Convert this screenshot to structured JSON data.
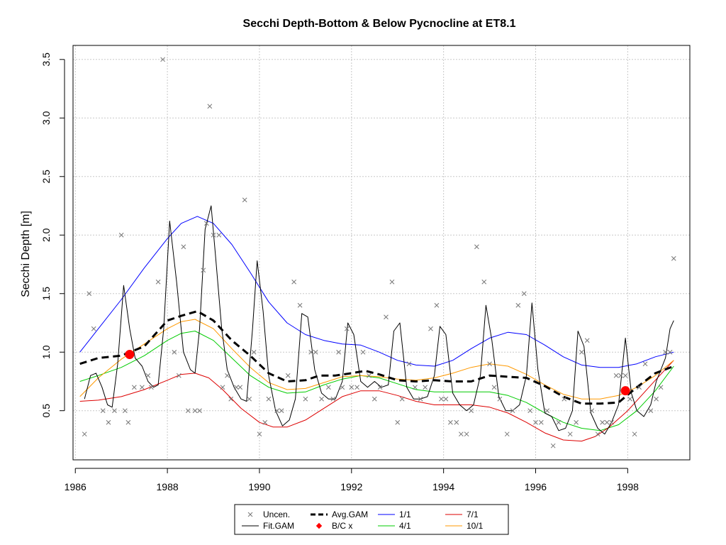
{
  "chart_data": {
    "type": "line",
    "title": "Secchi Depth-Bottom & Below Pycnocline at ET8.1",
    "xlabel": "",
    "ylabel": "Secchi Depth [m]",
    "xlim": [
      1985.95,
      1999.35
    ],
    "ylim": [
      0.08,
      3.62
    ],
    "x_ticks": [
      1986,
      1988,
      1990,
      1992,
      1994,
      1996,
      1998
    ],
    "y_ticks": [
      0.5,
      1.0,
      1.5,
      2.0,
      2.5,
      3.0,
      3.5
    ],
    "x_tick_labels": [
      "1986",
      "1988",
      "1990",
      "1992",
      "1994",
      "1996",
      "1998"
    ],
    "y_tick_labels": [
      "0.5",
      "1.0",
      "1.5",
      "2.0",
      "2.5",
      "3.0",
      "3.5"
    ],
    "grid": true,
    "legend_position": "bottom-center",
    "uncensored_points": {
      "x": [
        1986.2,
        1986.3,
        1986.4,
        1986.6,
        1986.72,
        1986.85,
        1987.0,
        1987.08,
        1987.15,
        1987.28,
        1987.45,
        1987.58,
        1987.65,
        1987.8,
        1987.9,
        1988.15,
        1988.25,
        1988.35,
        1988.45,
        1988.6,
        1988.7,
        1988.78,
        1988.85,
        1988.92,
        1989.0,
        1989.12,
        1989.2,
        1989.3,
        1989.38,
        1989.5,
        1989.58,
        1989.68,
        1989.78,
        1989.88,
        1990.0,
        1990.12,
        1990.2,
        1990.38,
        1990.48,
        1990.62,
        1990.75,
        1990.88,
        1991.0,
        1991.12,
        1991.22,
        1991.35,
        1991.5,
        1991.6,
        1991.72,
        1991.8,
        1991.9,
        1992.0,
        1992.12,
        1992.25,
        1992.38,
        1992.5,
        1992.62,
        1992.75,
        1992.88,
        1993.0,
        1993.1,
        1993.25,
        1993.38,
        1993.5,
        1993.6,
        1993.72,
        1993.85,
        1993.95,
        1994.05,
        1994.15,
        1994.28,
        1994.38,
        1994.5,
        1994.6,
        1994.72,
        1994.88,
        1995.0,
        1995.1,
        1995.22,
        1995.38,
        1995.5,
        1995.62,
        1995.75,
        1995.88,
        1996.0,
        1996.12,
        1996.25,
        1996.38,
        1996.5,
        1996.62,
        1996.75,
        1996.88,
        1997.0,
        1997.12,
        1997.22,
        1997.35,
        1997.45,
        1997.55,
        1997.65,
        1997.75,
        1997.85,
        1997.95,
        1998.05,
        1998.15,
        1998.25,
        1998.38,
        1998.5,
        1998.62,
        1998.72,
        1998.82,
        1998.92,
        1999.0
      ],
      "y": [
        0.3,
        1.5,
        1.2,
        0.5,
        0.4,
        0.5,
        2.0,
        0.5,
        0.4,
        0.7,
        0.7,
        0.8,
        0.7,
        1.6,
        3.5,
        1.0,
        0.8,
        1.9,
        0.5,
        0.5,
        0.5,
        1.7,
        2.1,
        3.1,
        2.0,
        2.0,
        0.7,
        0.8,
        0.6,
        0.7,
        0.7,
        2.3,
        0.6,
        1.0,
        0.3,
        0.4,
        0.6,
        0.5,
        0.5,
        0.8,
        1.6,
        1.4,
        0.6,
        1.0,
        1.0,
        0.6,
        0.7,
        0.6,
        1.0,
        0.7,
        1.2,
        0.7,
        0.7,
        1.0,
        0.8,
        0.6,
        0.7,
        1.3,
        1.6,
        0.4,
        0.6,
        0.9,
        0.7,
        0.6,
        0.7,
        1.2,
        1.4,
        0.6,
        0.6,
        0.4,
        0.4,
        0.3,
        0.3,
        0.5,
        1.9,
        1.6,
        0.9,
        0.7,
        0.6,
        0.3,
        0.5,
        1.4,
        1.5,
        0.5,
        0.4,
        0.4,
        0.5,
        0.2,
        0.4,
        0.6,
        0.3,
        0.4,
        1.0,
        1.1,
        0.5,
        0.3,
        0.4,
        0.4,
        0.4,
        0.8,
        0.8,
        0.8,
        0.6,
        0.3,
        0.7,
        0.9,
        0.5,
        0.6,
        0.7,
        1.0,
        1.0,
        1.8
      ]
    },
    "fit_gam": {
      "x": [
        1986.2,
        1986.33,
        1986.45,
        1986.58,
        1986.7,
        1986.8,
        1986.92,
        1987.05,
        1987.18,
        1987.3,
        1987.45,
        1987.58,
        1987.7,
        1987.8,
        1987.92,
        1988.05,
        1988.2,
        1988.35,
        1988.5,
        1988.6,
        1988.7,
        1988.82,
        1988.95,
        1989.05,
        1989.18,
        1989.3,
        1989.45,
        1989.6,
        1989.72,
        1989.85,
        1989.95,
        1990.08,
        1990.2,
        1990.35,
        1990.5,
        1990.65,
        1990.78,
        1990.92,
        1991.05,
        1991.2,
        1991.35,
        1991.5,
        1991.65,
        1991.8,
        1991.92,
        1992.05,
        1992.2,
        1992.35,
        1992.5,
        1992.65,
        1992.8,
        1992.92,
        1993.05,
        1993.2,
        1993.35,
        1993.5,
        1993.65,
        1993.8,
        1993.92,
        1994.05,
        1994.2,
        1994.35,
        1994.5,
        1994.65,
        1994.8,
        1994.92,
        1995.05,
        1995.2,
        1995.35,
        1995.5,
        1995.65,
        1995.8,
        1995.92,
        1996.05,
        1996.2,
        1996.35,
        1996.5,
        1996.65,
        1996.8,
        1996.92,
        1997.05,
        1997.2,
        1997.35,
        1997.5,
        1997.65,
        1997.8,
        1997.95,
        1998.08,
        1998.2,
        1998.35,
        1998.5,
        1998.62,
        1998.72,
        1998.82,
        1998.92,
        1999.0
      ],
      "y": [
        0.6,
        0.8,
        0.82,
        0.7,
        0.55,
        0.53,
        0.9,
        1.57,
        1.2,
        0.95,
        0.88,
        0.75,
        0.7,
        0.72,
        1.2,
        2.12,
        1.6,
        1.0,
        0.85,
        0.82,
        1.2,
        2.05,
        2.25,
        1.8,
        1.2,
        0.85,
        0.7,
        0.6,
        0.58,
        1.2,
        1.78,
        1.35,
        0.8,
        0.5,
        0.37,
        0.42,
        0.6,
        1.33,
        1.3,
        0.85,
        0.65,
        0.6,
        0.6,
        0.75,
        1.25,
        1.15,
        0.75,
        0.7,
        0.75,
        0.7,
        0.72,
        1.18,
        1.25,
        0.7,
        0.6,
        0.6,
        0.62,
        0.8,
        1.22,
        1.15,
        0.65,
        0.55,
        0.5,
        0.55,
        0.8,
        1.4,
        1.1,
        0.62,
        0.5,
        0.5,
        0.55,
        0.8,
        1.42,
        0.85,
        0.48,
        0.45,
        0.33,
        0.35,
        0.5,
        1.18,
        1.05,
        0.48,
        0.35,
        0.3,
        0.4,
        0.55,
        1.12,
        0.65,
        0.5,
        0.45,
        0.55,
        0.75,
        0.85,
        0.95,
        1.2,
        1.27
      ]
    },
    "avg_gam": {
      "x": [
        1986.1,
        1986.5,
        1987.0,
        1987.5,
        1988.0,
        1988.3,
        1988.65,
        1989.0,
        1989.4,
        1989.8,
        1990.2,
        1990.6,
        1991.0,
        1991.3,
        1991.65,
        1992.0,
        1992.3,
        1992.6,
        1993.0,
        1993.4,
        1993.8,
        1994.2,
        1994.6,
        1995.0,
        1995.4,
        1995.8,
        1996.2,
        1996.6,
        1997.0,
        1997.4,
        1997.8,
        1998.2,
        1998.6,
        1998.8,
        1999.0
      ],
      "y": [
        0.9,
        0.95,
        0.97,
        1.05,
        1.27,
        1.31,
        1.35,
        1.27,
        1.1,
        0.97,
        0.82,
        0.75,
        0.76,
        0.8,
        0.8,
        0.82,
        0.84,
        0.81,
        0.76,
        0.75,
        0.76,
        0.75,
        0.75,
        0.8,
        0.79,
        0.78,
        0.71,
        0.62,
        0.56,
        0.56,
        0.57,
        0.7,
        0.82,
        0.85,
        0.88
      ]
    },
    "bc_points": {
      "x": [
        1987.18,
        1997.95
      ],
      "y": [
        0.98,
        0.67
      ]
    },
    "series": [
      {
        "name": "1/1",
        "color": "#0000ff",
        "x": [
          1986.1,
          1986.5,
          1987.0,
          1987.5,
          1988.0,
          1988.3,
          1988.65,
          1989.0,
          1989.4,
          1989.8,
          1990.2,
          1990.6,
          1991.0,
          1991.4,
          1991.8,
          1992.2,
          1992.6,
          1993.0,
          1993.4,
          1993.8,
          1994.2,
          1994.6,
          1995.0,
          1995.4,
          1995.8,
          1996.2,
          1996.6,
          1997.0,
          1997.4,
          1997.8,
          1998.2,
          1998.6,
          1999.0
        ],
        "y": [
          1.0,
          1.2,
          1.45,
          1.72,
          1.97,
          2.1,
          2.16,
          2.1,
          1.92,
          1.68,
          1.43,
          1.25,
          1.15,
          1.1,
          1.07,
          1.06,
          1.0,
          0.93,
          0.89,
          0.88,
          0.93,
          1.03,
          1.12,
          1.17,
          1.15,
          1.06,
          0.96,
          0.89,
          0.87,
          0.87,
          0.9,
          0.96,
          1.0
        ]
      },
      {
        "name": "4/1",
        "color": "#00cc00",
        "x": [
          1986.1,
          1986.5,
          1987.0,
          1987.5,
          1988.0,
          1988.3,
          1988.6,
          1989.0,
          1989.4,
          1989.8,
          1990.2,
          1990.6,
          1991.0,
          1991.4,
          1991.8,
          1992.2,
          1992.6,
          1993.0,
          1993.4,
          1993.8,
          1994.2,
          1994.6,
          1995.0,
          1995.4,
          1995.8,
          1996.2,
          1996.6,
          1997.0,
          1997.4,
          1997.8,
          1998.2,
          1998.6,
          1999.0
        ],
        "y": [
          0.75,
          0.8,
          0.87,
          0.97,
          1.1,
          1.16,
          1.18,
          1.1,
          0.95,
          0.8,
          0.7,
          0.65,
          0.66,
          0.72,
          0.77,
          0.8,
          0.78,
          0.73,
          0.68,
          0.66,
          0.66,
          0.66,
          0.66,
          0.63,
          0.57,
          0.48,
          0.4,
          0.35,
          0.33,
          0.38,
          0.5,
          0.67,
          0.88
        ]
      },
      {
        "name": "7/1",
        "color": "#dd0000",
        "x": [
          1986.1,
          1986.5,
          1987.0,
          1987.5,
          1988.0,
          1988.3,
          1988.6,
          1988.9,
          1989.2,
          1989.6,
          1990.0,
          1990.3,
          1990.6,
          1991.0,
          1991.4,
          1991.8,
          1992.2,
          1992.6,
          1993.0,
          1993.4,
          1993.8,
          1994.2,
          1994.6,
          1995.0,
          1995.4,
          1995.8,
          1996.2,
          1996.6,
          1997.0,
          1997.3,
          1997.6,
          1998.0,
          1998.3,
          1998.6,
          1999.0
        ],
        "y": [
          0.58,
          0.59,
          0.62,
          0.68,
          0.76,
          0.81,
          0.82,
          0.78,
          0.68,
          0.52,
          0.4,
          0.36,
          0.36,
          0.42,
          0.52,
          0.62,
          0.67,
          0.67,
          0.63,
          0.58,
          0.55,
          0.55,
          0.55,
          0.53,
          0.48,
          0.4,
          0.31,
          0.25,
          0.24,
          0.28,
          0.36,
          0.5,
          0.63,
          0.76,
          0.93
        ]
      },
      {
        "name": "10/1",
        "color": "#ff9900",
        "x": [
          1986.1,
          1986.5,
          1987.0,
          1987.5,
          1988.0,
          1988.3,
          1988.6,
          1989.0,
          1989.4,
          1989.8,
          1990.2,
          1990.6,
          1991.0,
          1991.4,
          1991.8,
          1992.2,
          1992.6,
          1993.0,
          1993.4,
          1993.8,
          1994.2,
          1994.6,
          1995.0,
          1995.4,
          1995.8,
          1996.2,
          1996.6,
          1997.0,
          1997.4,
          1997.8,
          1998.2,
          1998.6,
          1999.0
        ],
        "y": [
          0.62,
          0.78,
          0.94,
          1.07,
          1.2,
          1.26,
          1.28,
          1.2,
          1.03,
          0.87,
          0.74,
          0.68,
          0.69,
          0.74,
          0.79,
          0.8,
          0.79,
          0.77,
          0.76,
          0.78,
          0.82,
          0.87,
          0.9,
          0.88,
          0.81,
          0.72,
          0.64,
          0.6,
          0.6,
          0.63,
          0.7,
          0.8,
          0.93
        ]
      }
    ],
    "legend": {
      "entries": [
        {
          "label": "Uncen.",
          "symbol": "x",
          "color": "#777777"
        },
        {
          "label": "Avg.GAM",
          "symbol": "dashed",
          "color": "#000000"
        },
        {
          "label": "1/1",
          "symbol": "line",
          "color": "#0000ff"
        },
        {
          "label": "7/1",
          "symbol": "line",
          "color": "#dd0000"
        },
        {
          "label": "Fit.GAM",
          "symbol": "line",
          "color": "#000000"
        },
        {
          "label": "B/C x",
          "symbol": "diamond",
          "color": "#ff0000"
        },
        {
          "label": "4/1",
          "symbol": "line",
          "color": "#00cc00"
        },
        {
          "label": "10/1",
          "symbol": "line",
          "color": "#ff9900"
        }
      ]
    }
  }
}
